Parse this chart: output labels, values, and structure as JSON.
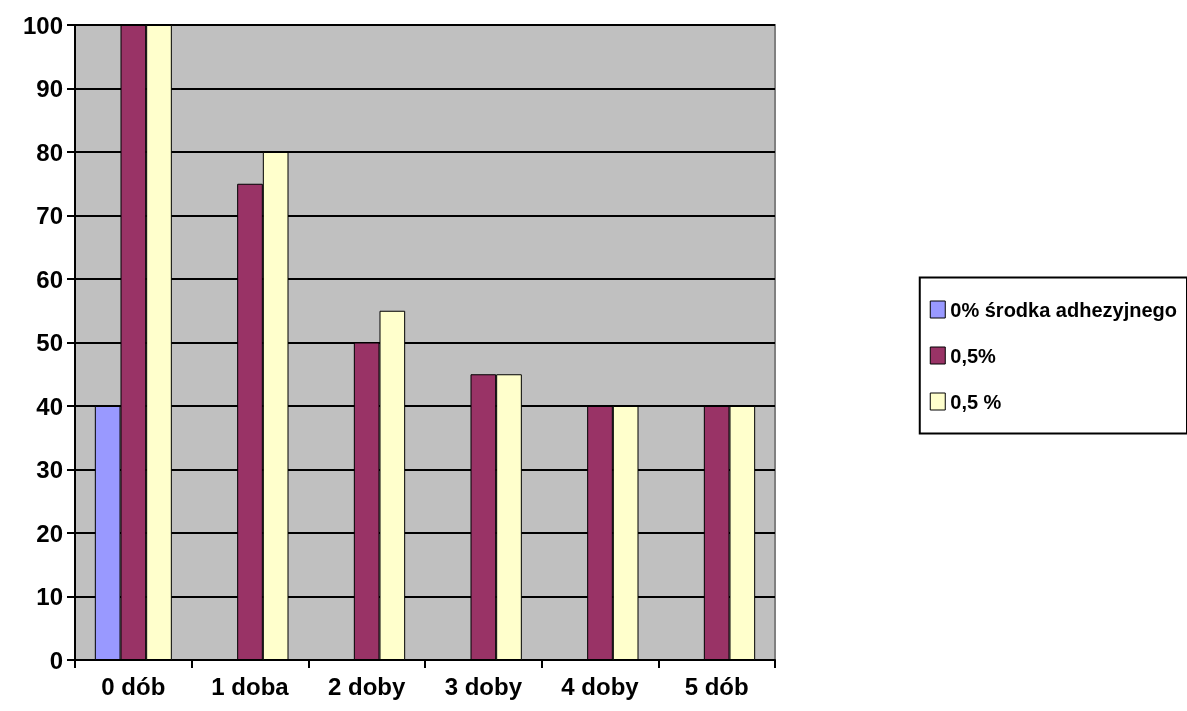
{
  "chart_data": {
    "type": "bar",
    "categories": [
      "0 dób",
      "1 doba",
      "2 doby",
      "3 doby",
      "4 doby",
      "5 dób"
    ],
    "series": [
      {
        "name": "0% środka adhezyjnego",
        "color": "#9999ff",
        "values": [
          40,
          null,
          null,
          null,
          null,
          null
        ]
      },
      {
        "name": "0,5%",
        "color": "#993366",
        "values": [
          100,
          75,
          50,
          45,
          40,
          40
        ]
      },
      {
        "name": "0,5 %",
        "color": "#ffffcc",
        "values": [
          100,
          80,
          55,
          45,
          40,
          40
        ]
      }
    ],
    "ylim": [
      0,
      100
    ],
    "yticks": [
      0,
      10,
      20,
      30,
      40,
      50,
      60,
      70,
      80,
      90,
      100
    ],
    "grid": "y",
    "legend": "right"
  }
}
